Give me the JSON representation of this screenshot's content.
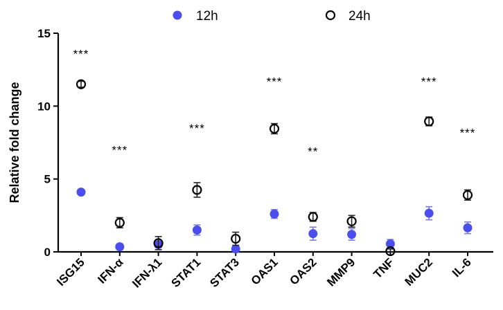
{
  "chart_data": {
    "type": "scatter",
    "title": "",
    "xlabel": "",
    "ylabel": "Relative fold change",
    "ylim": [
      0,
      15
    ],
    "yticks": [
      0,
      5,
      10,
      15
    ],
    "categories": [
      "ISG15",
      "IFN-α",
      "IFN-λ1",
      "STAT1",
      "STAT3",
      "OAS1",
      "OAS2",
      "MMP9",
      "TNF",
      "MUC2",
      "IL-6"
    ],
    "series": [
      {
        "name": "12h",
        "color": "#4a4ef0",
        "marker": "filled-circle",
        "values": [
          4.1,
          0.35,
          0.5,
          1.5,
          0.2,
          2.6,
          1.25,
          1.2,
          0.55,
          2.65,
          1.65
        ],
        "errors": [
          0.1,
          0.2,
          0.2,
          0.35,
          0.15,
          0.3,
          0.45,
          0.4,
          0.3,
          0.45,
          0.4
        ]
      },
      {
        "name": "24h",
        "color": "#000000",
        "marker": "open-circle",
        "values": [
          11.5,
          2.0,
          0.6,
          4.25,
          0.9,
          8.45,
          2.4,
          2.1,
          0.05,
          8.95,
          3.9
        ],
        "errors": [
          0.2,
          0.35,
          0.45,
          0.5,
          0.45,
          0.35,
          0.3,
          0.4,
          0.15,
          0.3,
          0.35
        ]
      }
    ],
    "significance": [
      "***",
      "***",
      "",
      "***",
      "",
      "***",
      "**",
      "",
      "",
      "***",
      "***"
    ],
    "significance_y": [
      13.6,
      7.0,
      null,
      8.5,
      null,
      11.7,
      6.9,
      null,
      null,
      11.7,
      8.2
    ],
    "legend": {
      "placement": "top-center",
      "entries": [
        "12h",
        "24h"
      ]
    },
    "grid": false
  }
}
